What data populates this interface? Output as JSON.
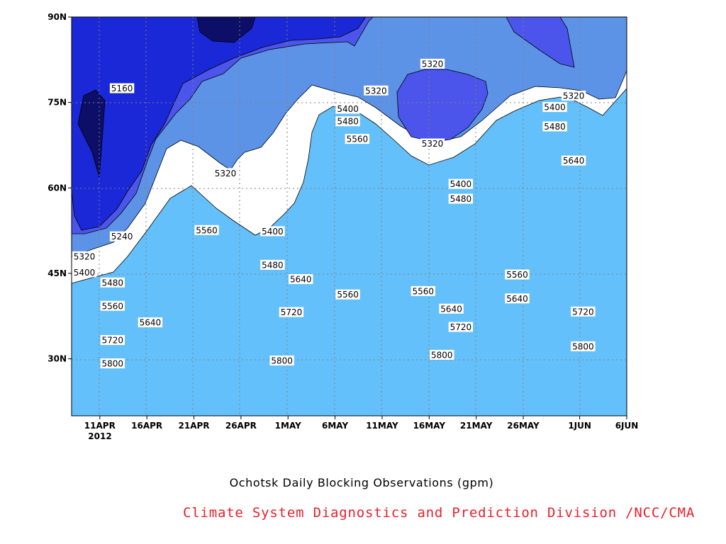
{
  "chart_data": {
    "type": "heatmap",
    "title": "Ochotsk Daily Blocking Observations (gpm)",
    "credit": "Climate System Diagnostics and Prediction Division /NCC/CMA",
    "units": "gpm",
    "x_ticks": [
      "11APR",
      "16APR",
      "21APR",
      "26APR",
      "1MAY",
      "6MAY",
      "11MAY",
      "16MAY",
      "21MAY",
      "26MAY",
      "1JUN",
      "6JUN"
    ],
    "x_year_label": "2012",
    "y_ticks": [
      "30N",
      "45N",
      "60N",
      "75N",
      "90N"
    ],
    "ylim": [
      20,
      90
    ],
    "xlim": [
      "2012-04-08",
      "2012-06-06"
    ],
    "grid": true,
    "levels": [
      5160,
      5240,
      5320,
      5400,
      5480,
      5560,
      5640,
      5720,
      5800,
      5880
    ],
    "level_colors": [
      "#0d0e68",
      "#1a28d8",
      "#4c55eb",
      "#5c93e6",
      "#64c0fb",
      "#fcfc7c",
      "#fde0a1",
      "#fda873",
      "#fd7346",
      "#f76c7c",
      "#f0374f"
    ],
    "contour_labels": [
      {
        "value": "5160",
        "date": "2012-04-12",
        "lat": 77.5
      },
      {
        "value": "5240",
        "date": "2012-04-12",
        "lat": 51.5
      },
      {
        "value": "5320",
        "date": "2012-04-08",
        "lat": 48
      },
      {
        "value": "5400",
        "date": "2012-04-08",
        "lat": 45.2
      },
      {
        "value": "5480",
        "date": "2012-04-11",
        "lat": 43.4
      },
      {
        "value": "5560",
        "date": "2012-04-11",
        "lat": 39.3
      },
      {
        "value": "5640",
        "date": "2012-04-15",
        "lat": 36.4
      },
      {
        "value": "5720",
        "date": "2012-04-11",
        "lat": 33.3
      },
      {
        "value": "5800",
        "date": "2012-04-11",
        "lat": 29.2
      },
      {
        "value": "5560",
        "date": "2012-04-21",
        "lat": 52.6
      },
      {
        "value": "5320",
        "date": "2012-04-23",
        "lat": 62.6
      },
      {
        "value": "5400",
        "date": "2012-04-28",
        "lat": 52.4
      },
      {
        "value": "5480",
        "date": "2012-04-28",
        "lat": 46.5
      },
      {
        "value": "5640",
        "date": "2012-05-01",
        "lat": 44
      },
      {
        "value": "5720",
        "date": "2012-04-30",
        "lat": 38.2
      },
      {
        "value": "5800",
        "date": "2012-04-29",
        "lat": 29.7
      },
      {
        "value": "5320",
        "date": "2012-05-09",
        "lat": 77.1
      },
      {
        "value": "5400",
        "date": "2012-05-06",
        "lat": 73.9
      },
      {
        "value": "5480",
        "date": "2012-05-06",
        "lat": 71.7
      },
      {
        "value": "5560",
        "date": "2012-05-07",
        "lat": 68.6
      },
      {
        "value": "5560",
        "date": "2012-05-06",
        "lat": 41.3
      },
      {
        "value": "5320",
        "date": "2012-05-15",
        "lat": 81.8
      },
      {
        "value": "5320",
        "date": "2012-05-15",
        "lat": 67.8
      },
      {
        "value": "5400",
        "date": "2012-05-18",
        "lat": 60.7
      },
      {
        "value": "5480",
        "date": "2012-05-18",
        "lat": 58.1
      },
      {
        "value": "5560",
        "date": "2012-05-14",
        "lat": 41.9
      },
      {
        "value": "5640",
        "date": "2012-05-17",
        "lat": 38.8
      },
      {
        "value": "5720",
        "date": "2012-05-18",
        "lat": 35.6
      },
      {
        "value": "5800",
        "date": "2012-05-16",
        "lat": 30.7
      },
      {
        "value": "5560",
        "date": "2012-05-24",
        "lat": 44.8
      },
      {
        "value": "5640",
        "date": "2012-05-24",
        "lat": 40.6
      },
      {
        "value": "5320",
        "date": "2012-05-30",
        "lat": 76.2
      },
      {
        "value": "5400",
        "date": "2012-05-28",
        "lat": 74.2
      },
      {
        "value": "5480",
        "date": "2012-05-28",
        "lat": 70.8
      },
      {
        "value": "5640",
        "date": "2012-05-30",
        "lat": 64.8
      },
      {
        "value": "5720",
        "date": "2012-05-31",
        "lat": 38.3
      },
      {
        "value": "5800",
        "date": "2012-05-31",
        "lat": 32.2
      }
    ]
  }
}
